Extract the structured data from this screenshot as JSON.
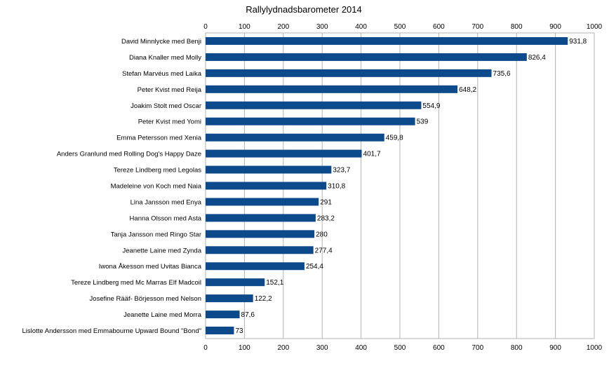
{
  "chart_data": {
    "type": "bar",
    "orientation": "horizontal",
    "title": "Rallylydnadsbarometer 2014",
    "xlabel": "",
    "ylabel": "",
    "xlim": [
      0,
      1000
    ],
    "ticks": [
      "0",
      "100",
      "200",
      "300",
      "400",
      "500",
      "600",
      "700",
      "800",
      "900",
      "1000"
    ],
    "tick_axes": "top and bottom",
    "grid": true,
    "legend": "none",
    "bar_color": "#0d4a8c",
    "categories": [
      "David Minnlycke med Benji",
      "Diana Knaller med Molly",
      "Stefan Marvéus med Laika",
      "Peter Kvist med Reija",
      "Joakim Stolt med Oscar",
      "Peter Kvist med Yomi",
      "Emma Petersson med Xenia",
      "Anders Granlund med Rolling Dog's Happy Daze",
      "Tereze Lindberg med Legolas",
      "Madeleine von Koch med Naia",
      "Lina Jansson med Enya",
      "Hanna Olsson med Asta",
      "Tanja Jansson med Ringo Star",
      "Jeanette Laine med Zynda",
      "Iwona Åkesson med Uvitas Bianca",
      "Tereze Lindberg med Mc Marras Elf Madcoil",
      "Josefine Rääf- Börjesson med Nelson",
      "Jeanette Laine med Morra",
      "Lislotte Andersson med Emmabourne Upward Bound \"Bond\""
    ],
    "values": [
      931.8,
      826.4,
      735.6,
      648.2,
      554.9,
      539,
      459.8,
      401.7,
      323.7,
      310.8,
      291,
      283.2,
      280,
      277.4,
      254.4,
      152.1,
      122.2,
      87.6,
      73
    ],
    "value_labels": [
      "931,8",
      "826,4",
      "735,6",
      "648,2",
      "554,9",
      "539",
      "459,8",
      "401,7",
      "323,7",
      "310,8",
      "291",
      "283,2",
      "280",
      "277,4",
      "254,4",
      "152,1",
      "122,2",
      "87,6",
      "73"
    ]
  }
}
